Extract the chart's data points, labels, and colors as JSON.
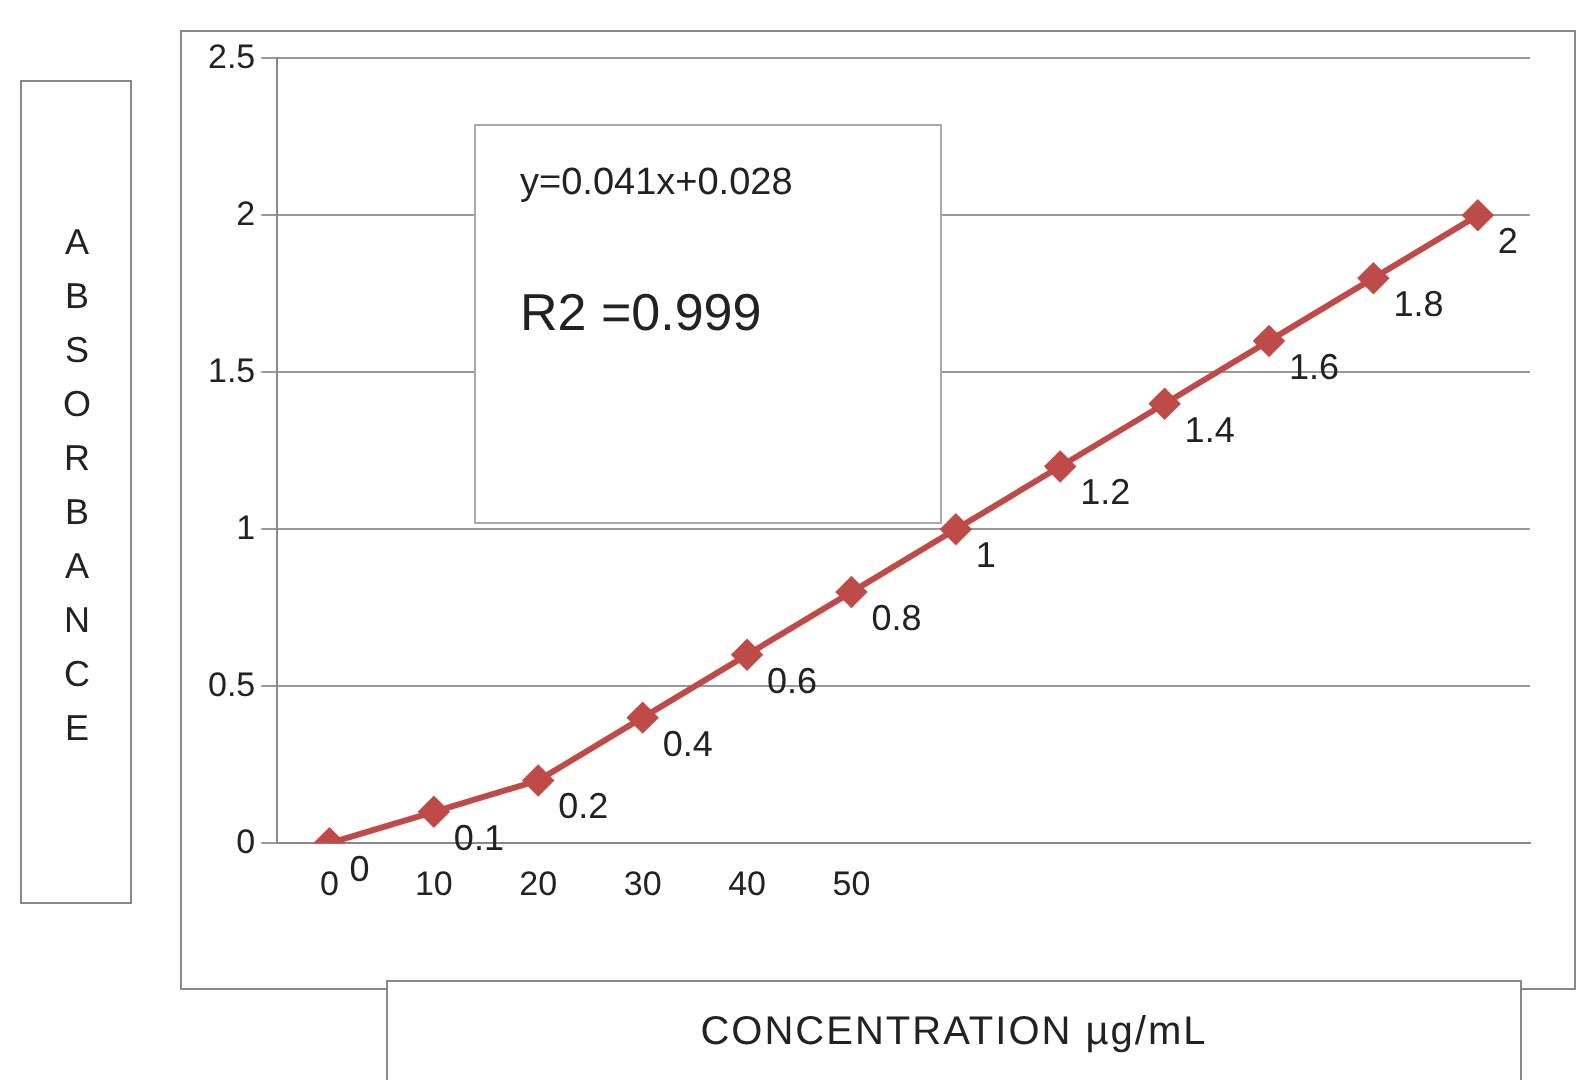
{
  "chart_data": {
    "type": "line",
    "ylabel": "ABSORBANCE",
    "xlabel": "CONCENTRATION µg/mL",
    "annotations": [
      "y=0.041x+0.028",
      "R2 =0.999"
    ],
    "categories": [
      "0",
      "10",
      "20",
      "30",
      "40",
      "50",
      null,
      null,
      null,
      null,
      null,
      null
    ],
    "values": [
      0,
      0.1,
      0.2,
      0.4,
      0.6,
      0.8,
      1,
      1.2,
      1.4,
      1.6,
      1.8,
      2
    ],
    "color": "#be4b48",
    "marker": "diamond",
    "ylim": [
      0,
      2.5
    ],
    "yticks": [
      0,
      0.5,
      1,
      1.5,
      2,
      2.5
    ],
    "grid": "y",
    "legend": false,
    "data_labels": true
  }
}
